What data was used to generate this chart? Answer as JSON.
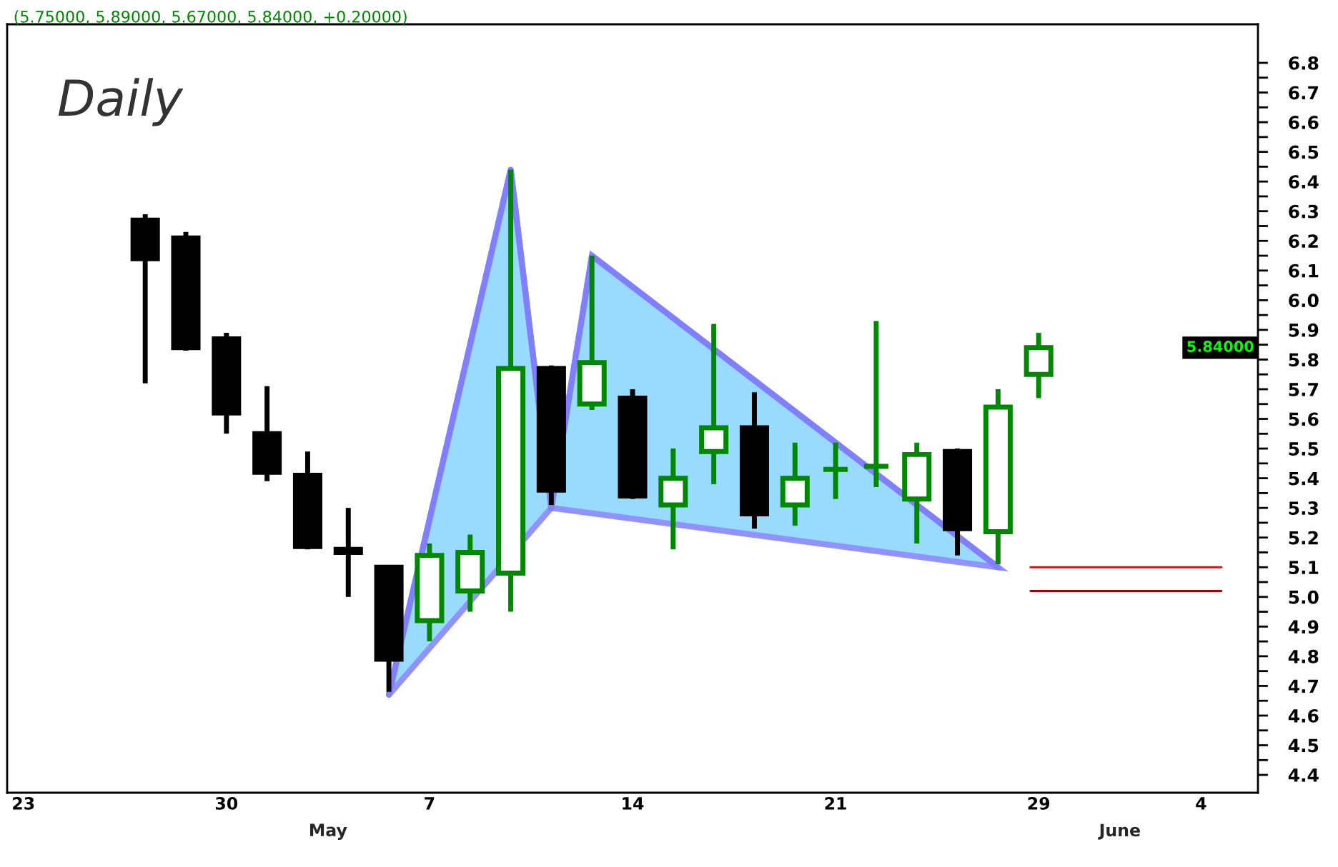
{
  "chart_data": {
    "type": "candlestick",
    "title": "Daily",
    "subtitle": "(5.75000, 5.89000, 5.67000, 5.84000, +0.20000)",
    "categories": [
      "23",
      null,
      null,
      null,
      null,
      "30",
      null,
      null,
      null,
      null,
      "7",
      null,
      null,
      null,
      null,
      "14",
      null,
      null,
      null,
      null,
      "21",
      null,
      null,
      null,
      null,
      "29",
      null,
      null,
      null,
      "4",
      null
    ],
    "ohlc": [
      null,
      null,
      null,
      [
        6.27,
        6.29,
        5.72,
        6.14
      ],
      [
        6.21,
        6.23,
        5.83,
        5.84
      ],
      [
        5.87,
        5.89,
        5.55,
        5.62
      ],
      [
        5.55,
        5.71,
        5.39,
        5.42
      ],
      [
        5.41,
        5.49,
        5.16,
        5.17
      ],
      [
        5.16,
        5.3,
        5.0,
        5.15
      ],
      [
        5.1,
        5.1,
        4.68,
        4.79
      ],
      [
        4.92,
        5.18,
        4.85,
        5.14
      ],
      [
        5.02,
        5.21,
        4.95,
        5.15
      ],
      [
        5.08,
        6.44,
        4.95,
        5.77
      ],
      [
        5.77,
        5.78,
        5.31,
        5.36
      ],
      [
        5.65,
        6.15,
        5.63,
        5.79
      ],
      [
        5.67,
        5.7,
        5.33,
        5.34
      ],
      [
        5.31,
        5.5,
        5.16,
        5.4
      ],
      [
        5.49,
        5.92,
        5.38,
        5.57
      ],
      [
        5.57,
        5.69,
        5.23,
        5.28
      ],
      [
        5.31,
        5.52,
        5.24,
        5.4
      ],
      [
        5.43,
        5.52,
        5.33,
        5.43
      ],
      [
        5.44,
        5.93,
        5.37,
        5.44
      ],
      [
        5.33,
        5.52,
        5.18,
        5.48
      ],
      [
        5.49,
        5.5,
        5.14,
        5.23
      ],
      [
        5.22,
        5.7,
        5.11,
        5.64
      ],
      [
        5.75,
        5.89,
        5.67,
        5.84
      ],
      null,
      null,
      null,
      null,
      null
    ],
    "colors": [
      null,
      null,
      null,
      "#000000",
      "#000000",
      "#000000",
      "#000000",
      "#000000",
      "#000000",
      "#000000",
      "#008800",
      "#008800",
      "#008800",
      "#000000",
      "#008800",
      "#000000",
      "#008800",
      "#008800",
      "#000000",
      "#008800",
      "#008800",
      "#008800",
      "#008800",
      "#000000",
      "#008800",
      "#008800",
      null,
      null,
      null,
      null,
      null
    ],
    "series": [
      {
        "type": "line",
        "color": "#8080ff",
        "values": [
          null,
          null,
          null,
          null,
          null,
          null,
          null,
          null,
          null,
          4.67,
          null,
          null,
          6.44,
          5.3,
          6.15,
          null,
          null,
          null,
          null,
          null,
          null,
          null,
          null,
          null,
          5.1,
          null,
          null,
          null,
          null,
          null,
          null
        ]
      }
    ],
    "ylim": [
      4.34,
      6.93
    ],
    "yticks": [
      4.4,
      4.5,
      4.6,
      4.7,
      4.8,
      4.9,
      {
        "value": 5,
        "label": "5.0"
      },
      5.1,
      5.2,
      5.3,
      5.4,
      5.5,
      5.6,
      5.7,
      5.8,
      5.9,
      {
        "value": 6,
        "label": "6.0"
      },
      6.1,
      6.2,
      6.3,
      6.4,
      6.5,
      6.6,
      6.7,
      6.8,
      {
        "value": 4.45,
        "label": null
      },
      {
        "value": 4.55,
        "label": null
      },
      {
        "value": 4.65,
        "label": null
      },
      {
        "value": 4.75,
        "label": null
      },
      {
        "value": 4.85,
        "label": null
      },
      {
        "value": 4.95,
        "label": null
      },
      {
        "value": 5.05,
        "label": null
      },
      {
        "value": 5.15,
        "label": null
      },
      {
        "value": 5.25,
        "label": null
      },
      {
        "value": 5.35,
        "label": null
      },
      {
        "value": 5.45,
        "label": null
      },
      {
        "value": 5.55,
        "label": null
      },
      {
        "value": 5.65,
        "label": null
      },
      {
        "value": 5.75,
        "label": null
      },
      {
        "value": 5.85,
        "label": null
      },
      {
        "value": 5.95,
        "label": null
      },
      {
        "value": 6.05,
        "label": null
      },
      {
        "value": 6.15,
        "label": null
      },
      {
        "value": 6.25,
        "label": null
      },
      {
        "value": 6.35,
        "label": null
      },
      {
        "value": 6.45,
        "label": null
      },
      {
        "value": 6.55,
        "label": null
      },
      {
        "value": 6.65,
        "label": null
      },
      {
        "value": 6.75,
        "label": null
      }
    ],
    "ref_lines": [
      {
        "axis": "y",
        "value": 5.1,
        "color": "#ff0000"
      },
      {
        "axis": "y",
        "value": 5.02,
        "color": "#a00000"
      }
    ],
    "annotations": [
      "May",
      "June",
      "5.84000"
    ],
    "grid": false,
    "legend": false
  }
}
